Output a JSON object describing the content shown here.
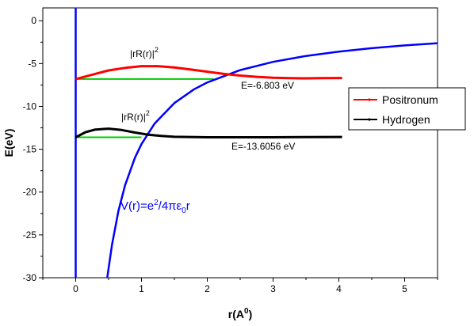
{
  "chart_data": {
    "type": "line",
    "xlabel": "r(A",
    "xlabel_sup": "0",
    "xlabel_close": ")",
    "ylabel": "E(eV)",
    "xlim": [
      -0.5,
      5.5
    ],
    "ylim": [
      -30,
      1.5
    ],
    "xticks": [
      0,
      1,
      2,
      3,
      4,
      5
    ],
    "yticks": [
      0,
      -5,
      -10,
      -15,
      -20,
      -25,
      -30
    ],
    "grid": false,
    "legend_placement": "right",
    "colors": {
      "positronium": "#ff0000",
      "hydrogen": "#000000",
      "potential": "#0000ff",
      "energy_level": "#00cc00",
      "axis_line": "#0000ff"
    },
    "series": [
      {
        "name": "Positronum",
        "x": [
          0,
          0.25,
          0.5,
          0.75,
          1.0,
          1.25,
          1.5,
          1.75,
          2.0,
          2.25,
          2.5,
          2.75,
          3.0,
          3.25,
          3.5,
          3.75,
          4.0,
          4.05
        ],
        "y": [
          -6.8,
          -6.3,
          -5.8,
          -5.5,
          -5.3,
          -5.3,
          -5.45,
          -5.7,
          -5.95,
          -6.2,
          -6.4,
          -6.55,
          -6.65,
          -6.7,
          -6.72,
          -6.7,
          -6.68,
          -6.68
        ]
      },
      {
        "name": "Hydrogen",
        "x": [
          0,
          0.15,
          0.3,
          0.5,
          0.7,
          0.9,
          1.1,
          1.3,
          1.5,
          2.0,
          2.5,
          3.0,
          3.5,
          4.0,
          4.05
        ],
        "y": [
          -13.6,
          -13.0,
          -12.7,
          -12.6,
          -12.75,
          -13.05,
          -13.3,
          -13.45,
          -13.55,
          -13.6,
          -13.6,
          -13.6,
          -13.58,
          -13.57,
          -13.57
        ]
      },
      {
        "name": "V(r)",
        "x": [
          0.48,
          0.55,
          0.65,
          0.75,
          0.9,
          1.0,
          1.2,
          1.5,
          1.8,
          2.0,
          2.5,
          3.0,
          3.5,
          4.0,
          4.5,
          5.0,
          5.5
        ],
        "y": [
          -30.0,
          -26.2,
          -22.2,
          -19.2,
          -16.0,
          -14.4,
          -12.0,
          -9.6,
          -8.0,
          -7.2,
          -5.76,
          -4.8,
          -4.11,
          -3.6,
          -3.2,
          -2.88,
          -2.62
        ]
      }
    ],
    "energy_levels": [
      {
        "x": [
          0,
          2.1
        ],
        "y": -6.803
      },
      {
        "x": [
          0,
          1.0
        ],
        "y": -13.6056
      }
    ],
    "annotations": {
      "positronium_energy": "E=-6.803 eV",
      "hydrogen_energy": "E=-13.6056 eV",
      "prob_label_1": "|rR(r)|",
      "prob_label_2": "|rR(r)|",
      "prob_exponent": "2",
      "potential_label": "V(r)=e",
      "potential_label_sup": "2",
      "potential_label_mid": "/4πε",
      "potential_label_sub": "0",
      "potential_label_end": "r"
    }
  }
}
